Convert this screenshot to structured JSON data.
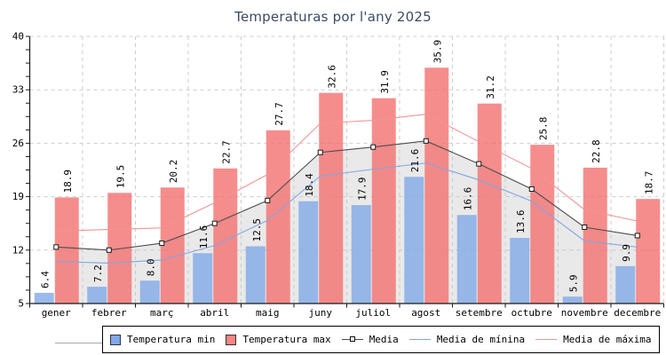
{
  "chart_data": {
    "type": "bar",
    "title": "Temperaturas por l'any 2025",
    "categories": [
      "gener",
      "febrer",
      "març",
      "abril",
      "maig",
      "juny",
      "juliol",
      "agost",
      "setembre",
      "octubre",
      "novembre",
      "decembre"
    ],
    "ylim": [
      5,
      40
    ],
    "yticks": [
      5,
      12,
      19,
      26,
      33,
      40
    ],
    "grid": true,
    "legend_position": "bottom",
    "axis_color": "#1A1A1A",
    "grid_color": "#CCCCCC",
    "bar_series": [
      {
        "name": "Temperatura min",
        "color": "#7FA9E6",
        "legend_color": "#82A7EC",
        "values": [
          6.4,
          7.2,
          8.0,
          11.6,
          12.5,
          18.4,
          17.9,
          21.6,
          16.6,
          13.6,
          5.9,
          9.9
        ]
      },
      {
        "name": "Temperatura max",
        "color": "#F3716F",
        "legend_color": "#F58484",
        "values": [
          18.9,
          19.5,
          20.2,
          22.7,
          27.7,
          32.6,
          31.9,
          35.9,
          31.2,
          25.8,
          22.8,
          18.7
        ]
      }
    ],
    "line_series": [
      {
        "name": "Media",
        "color": "#4D4D4D",
        "marker": "square",
        "area_color": "#C8C8C8",
        "values": [
          12.4,
          12.0,
          12.9,
          15.5,
          18.5,
          24.8,
          25.5,
          26.3,
          23.3,
          20.0,
          15.0,
          13.9
        ]
      },
      {
        "name": "Media de mínina",
        "color": "#84A4E4",
        "values": [
          10.5,
          10.3,
          10.7,
          12.6,
          15.9,
          21.7,
          22.6,
          23.4,
          21.2,
          18.4,
          13.2,
          12.4
        ]
      },
      {
        "name": "Media de máxima",
        "color": "#F09593",
        "values": [
          14.5,
          14.7,
          14.9,
          18.2,
          21.9,
          28.6,
          29.0,
          29.8,
          26.2,
          22.7,
          17.3,
          15.8
        ]
      }
    ]
  }
}
